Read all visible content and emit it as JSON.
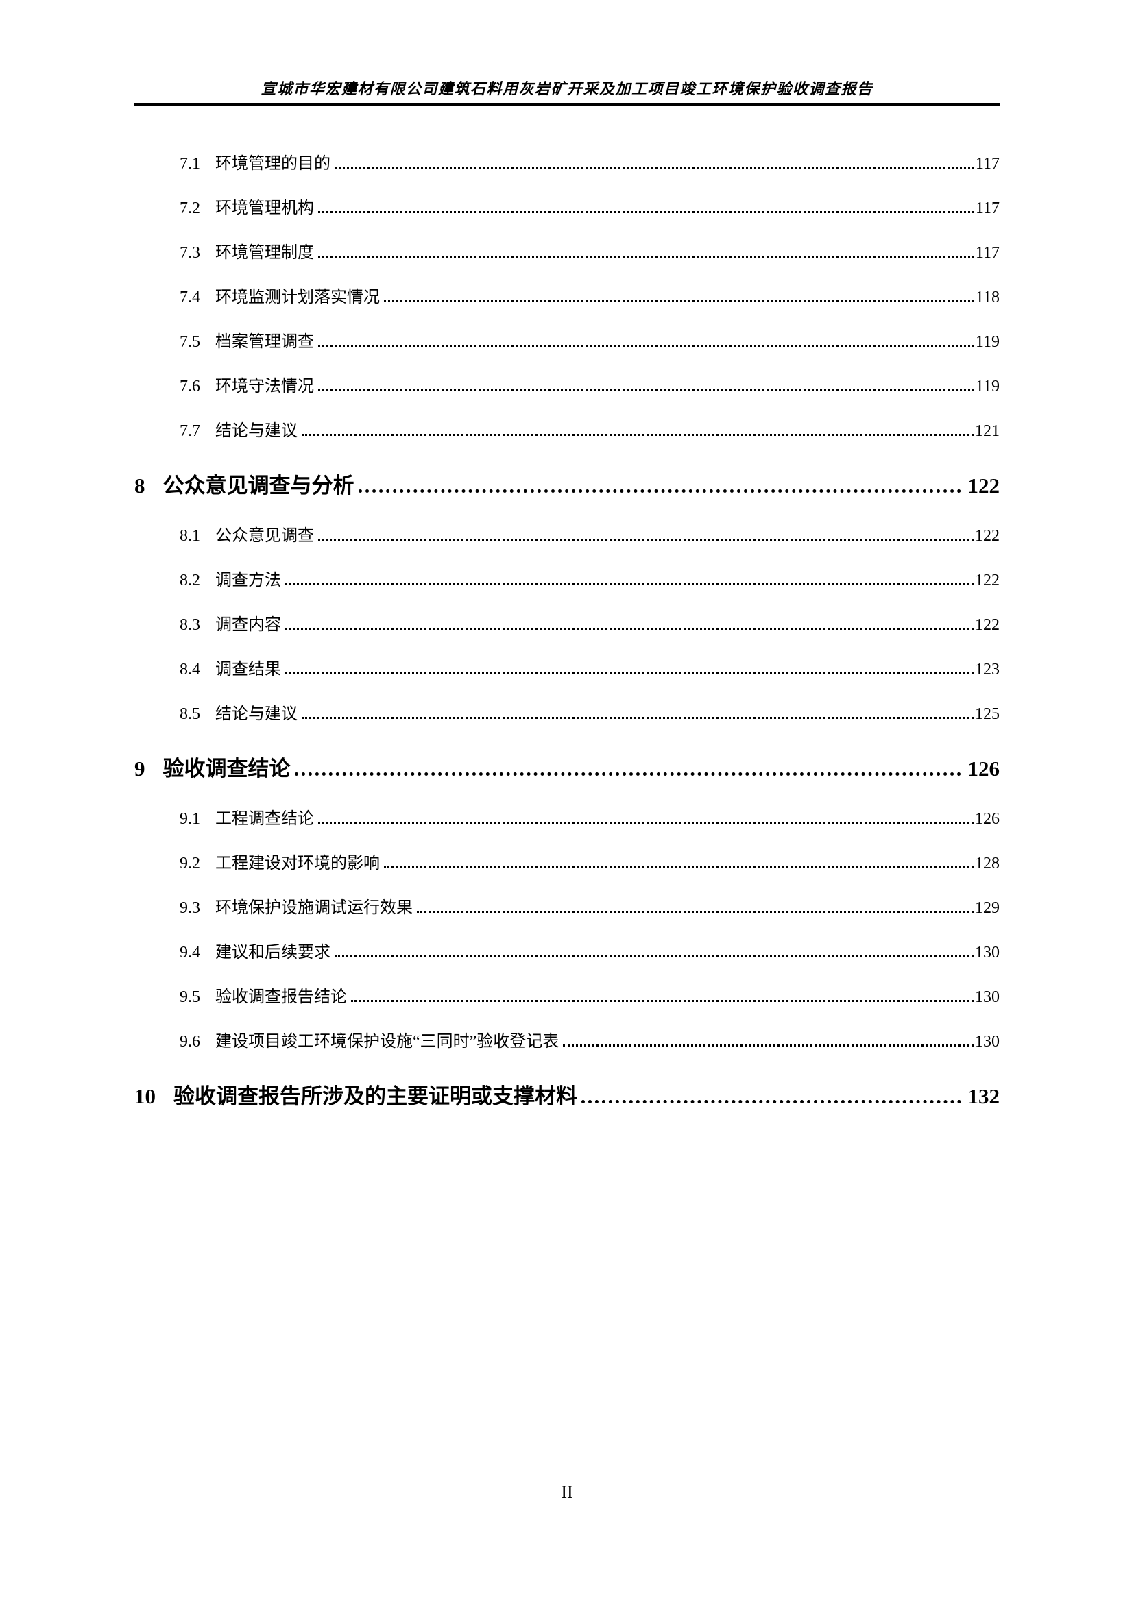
{
  "page": {
    "header_title": "宣城市华宏建材有限公司建筑石料用灰岩矿开采及加工项目竣工环境保护验收调查报告",
    "footer_page_number": "II",
    "text_color": "#000000",
    "background_color": "#ffffff"
  },
  "toc": {
    "items": [
      {
        "level": 2,
        "number": "7.1",
        "title": "环境管理的目的",
        "page": "117"
      },
      {
        "level": 2,
        "number": "7.2",
        "title": "环境管理机构",
        "page": "117"
      },
      {
        "level": 2,
        "number": "7.3",
        "title": "环境管理制度",
        "page": "117"
      },
      {
        "level": 2,
        "number": "7.4",
        "title": "环境监测计划落实情况",
        "page": "118"
      },
      {
        "level": 2,
        "number": "7.5",
        "title": "档案管理调查",
        "page": "119"
      },
      {
        "level": 2,
        "number": "7.6",
        "title": "环境守法情况",
        "page": "119"
      },
      {
        "level": 2,
        "number": "7.7",
        "title": "结论与建议",
        "page": "121"
      },
      {
        "level": 1,
        "number": "8",
        "title": "公众意见调查与分析",
        "page": "122"
      },
      {
        "level": 2,
        "number": "8.1",
        "title": "公众意见调查",
        "page": "122"
      },
      {
        "level": 2,
        "number": "8.2",
        "title": "调查方法",
        "page": "122"
      },
      {
        "level": 2,
        "number": "8.3",
        "title": "调查内容",
        "page": "122"
      },
      {
        "level": 2,
        "number": "8.4",
        "title": "调查结果",
        "page": "123"
      },
      {
        "level": 2,
        "number": "8.5",
        "title": "结论与建议",
        "page": "125"
      },
      {
        "level": 1,
        "number": "9",
        "title": "验收调查结论",
        "page": "126"
      },
      {
        "level": 2,
        "number": "9.1",
        "title": "工程调查结论",
        "page": "126"
      },
      {
        "level": 2,
        "number": "9.2",
        "title": "工程建设对环境的影响",
        "page": "128"
      },
      {
        "level": 2,
        "number": "9.3",
        "title": "环境保护设施调试运行效果",
        "page": "129"
      },
      {
        "level": 2,
        "number": "9.4",
        "title": "建议和后续要求",
        "page": "130"
      },
      {
        "level": 2,
        "number": "9.5",
        "title": "验收调查报告结论",
        "page": "130"
      },
      {
        "level": 2,
        "number": "9.6",
        "title": "建设项目竣工环境保护设施“三同时”验收登记表",
        "page": "130"
      },
      {
        "level": 1,
        "number": "10",
        "title": "验收调查报告所涉及的主要证明或支撑材料",
        "page": "132"
      }
    ]
  }
}
